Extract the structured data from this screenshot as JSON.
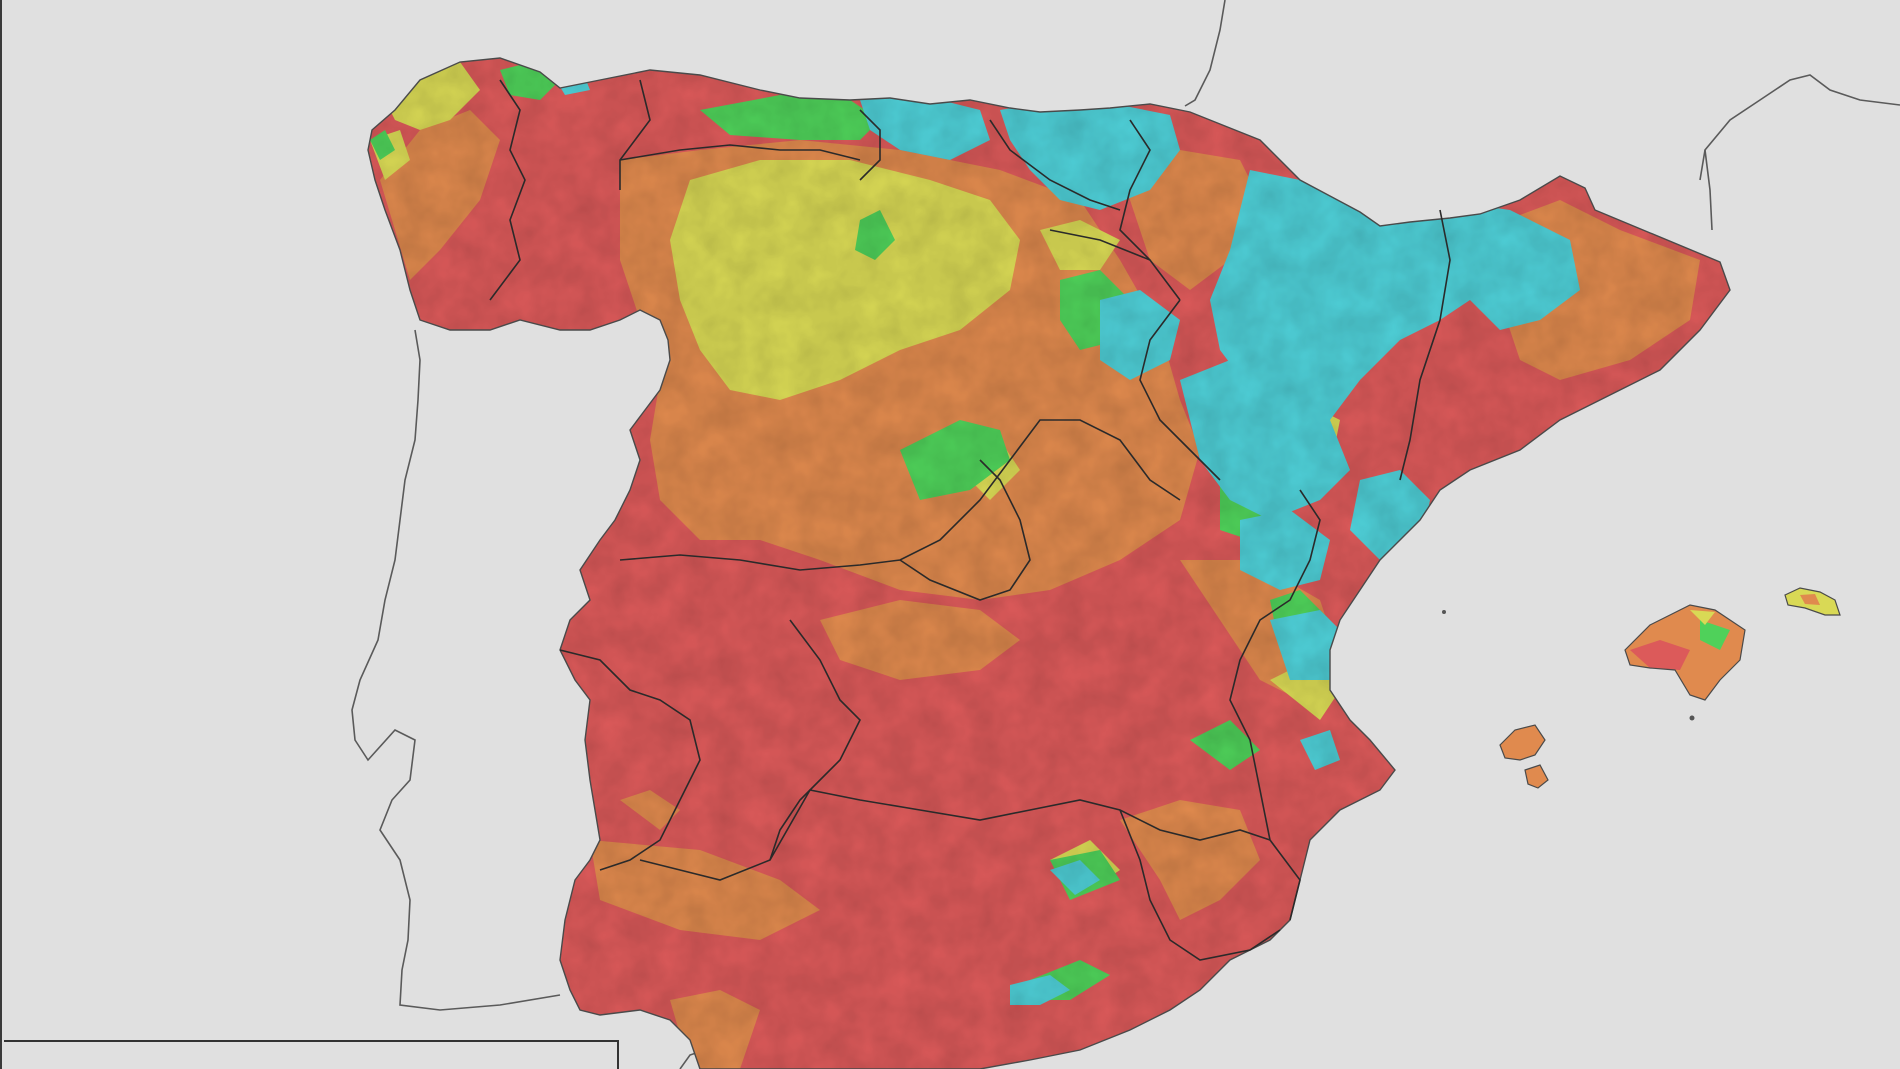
{
  "map": {
    "background_color": "#e0e0e0",
    "border_color": "#333333",
    "coastline_color": "#555555",
    "class_colors": {
      "very_high": "#dc5a5a",
      "high": "#e08a4e",
      "moderate": "#d9d955",
      "low": "#4fd15a",
      "very_low": "#4fd0d8"
    },
    "regions": [
      "spain-peninsula",
      "balearic-islands",
      "portugal",
      "france",
      "north-africa"
    ],
    "labels": []
  }
}
